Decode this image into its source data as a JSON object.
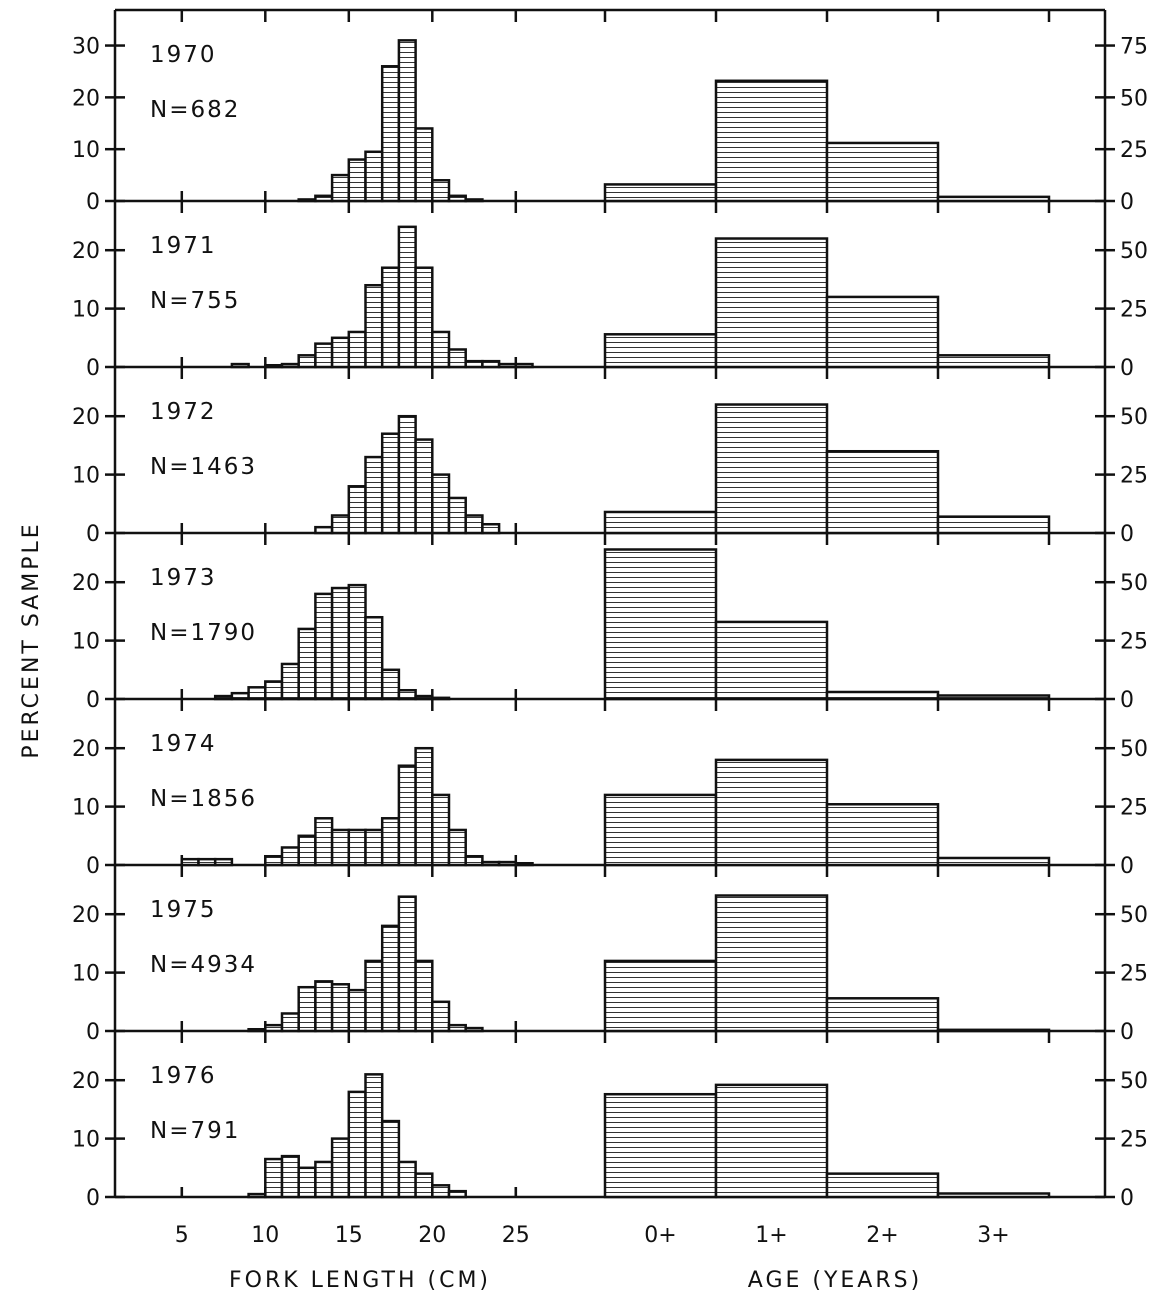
{
  "y_axis_title": "PERCENT SAMPLE",
  "x_axis_titles": {
    "length": "FORK LENGTH (CM)",
    "age": "AGE (YEARS)"
  },
  "chart_data": {
    "type": "bar",
    "title": "",
    "length_axis": {
      "label": "FORK LENGTH (CM)",
      "range": [
        1,
        29
      ],
      "tick_labels": [
        "5",
        "10",
        "15",
        "20",
        "25"
      ],
      "tick_values": [
        5,
        10,
        15,
        20,
        25
      ],
      "bin_width_cm": 1
    },
    "age_axis": {
      "label": "AGE (YEARS)",
      "categories": [
        "0+",
        "1+",
        "2+",
        "3+"
      ]
    },
    "panels": [
      {
        "year_label": "1970",
        "n_label": "N=682",
        "left_ylim": [
          0,
          33
        ],
        "left_ticks": [
          "0",
          "10",
          "20",
          "30"
        ],
        "right_ylim": [
          0,
          82.5
        ],
        "right_ticks": [
          "0",
          "25",
          "50",
          "75"
        ],
        "length_bins_start": 12,
        "length_percent": [
          0.3,
          1,
          5,
          8,
          9.5,
          26,
          31,
          14,
          4,
          1,
          0.3
        ],
        "age_percent": [
          8,
          58,
          28,
          2
        ]
      },
      {
        "year_label": "1971",
        "n_label": "N=755",
        "left_ylim": [
          0,
          25
        ],
        "left_ticks": [
          "0",
          "10",
          "20"
        ],
        "right_ylim": [
          0,
          62.5
        ],
        "right_ticks": [
          "0",
          "25",
          "50"
        ],
        "length_bins_start": 8,
        "length_percent": [
          0.5,
          0,
          0.3,
          0.5,
          2,
          4,
          5,
          6,
          14,
          17,
          24,
          17,
          6,
          3,
          1,
          1,
          0.5,
          0.5
        ],
        "age_percent": [
          14,
          55,
          30,
          5
        ]
      },
      {
        "year_label": "1972",
        "n_label": "N=1463",
        "left_ylim": [
          0,
          25
        ],
        "left_ticks": [
          "0",
          "10",
          "20"
        ],
        "right_ylim": [
          0,
          62.5
        ],
        "right_ticks": [
          "0",
          "25",
          "50"
        ],
        "length_bins_start": 13,
        "length_percent": [
          1,
          3,
          8,
          13,
          17,
          20,
          16,
          10,
          6,
          3,
          1.5
        ],
        "age_percent": [
          9,
          55,
          35,
          7
        ]
      },
      {
        "year_label": "1973",
        "n_label": "N=1790",
        "left_ylim": [
          0,
          25
        ],
        "left_ticks": [
          "0",
          "10",
          "20"
        ],
        "right_ylim": [
          0,
          62.5
        ],
        "right_ticks": [
          "0",
          "25",
          "50"
        ],
        "length_bins_start": 7,
        "length_percent": [
          0.5,
          1,
          2,
          3,
          6,
          12,
          18,
          19,
          19.5,
          14,
          5,
          1.5,
          0.5,
          0.2
        ],
        "age_percent": [
          64,
          33,
          3,
          1.5
        ]
      },
      {
        "year_label": "1974",
        "n_label": "N=1856",
        "left_ylim": [
          0,
          25
        ],
        "left_ticks": [
          "0",
          "10",
          "20"
        ],
        "right_ylim": [
          0,
          62.5
        ],
        "right_ticks": [
          "0",
          "25",
          "50"
        ],
        "length_bins_start": 5,
        "length_percent": [
          1,
          1,
          1,
          0,
          0,
          1.5,
          3,
          5,
          8,
          6,
          6,
          6,
          8,
          17,
          20,
          12,
          6,
          1.5,
          0.5,
          0.5,
          0.3
        ],
        "age_percent": [
          30,
          45,
          26,
          3
        ]
      },
      {
        "year_label": "1975",
        "n_label": "N=4934",
        "left_ylim": [
          0,
          25
        ],
        "left_ticks": [
          "0",
          "10",
          "20"
        ],
        "right_ylim": [
          0,
          62.5
        ],
        "right_ticks": [
          "0",
          "25",
          "50"
        ],
        "length_bins_start": 9,
        "length_percent": [
          0.3,
          1,
          3,
          7.5,
          8.5,
          8,
          7,
          12,
          18,
          23,
          12,
          5,
          1,
          0.5
        ],
        "age_percent": [
          30,
          58,
          14,
          0.5
        ]
      },
      {
        "year_label": "1976",
        "n_label": "N=791",
        "left_ylim": [
          0,
          25
        ],
        "left_ticks": [
          "0",
          "10",
          "20"
        ],
        "right_ylim": [
          0,
          62.5
        ],
        "right_ticks": [
          "0",
          "25",
          "50"
        ],
        "length_bins_start": 9,
        "length_percent": [
          0.5,
          6.5,
          7,
          5,
          6,
          10,
          18,
          21,
          13,
          6,
          4,
          2,
          1
        ],
        "age_percent": [
          44,
          48,
          10,
          1.5
        ]
      }
    ]
  }
}
